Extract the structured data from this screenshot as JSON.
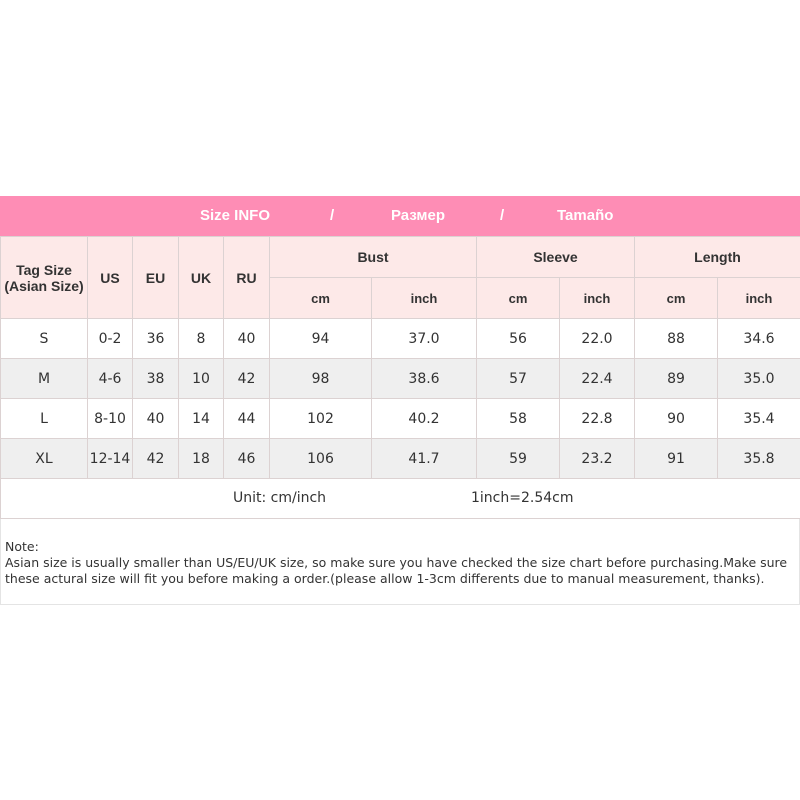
{
  "banner": {
    "title": "Size INFO",
    "sep1": "/",
    "ru": "Размер",
    "sep2": "/",
    "es": "Tamaño"
  },
  "headers": {
    "tag": "Tag Size",
    "tag2": "(Asian Size)",
    "us": "US",
    "eu": "EU",
    "uk": "UK",
    "ru": "RU",
    "bust": "Bust",
    "sleeve": "Sleeve",
    "length": "Length",
    "cm": "cm",
    "inch": "inch"
  },
  "rows": [
    [
      "S",
      "0-2",
      "36",
      "8",
      "40",
      "94",
      "37.0",
      "56",
      "22.0",
      "88",
      "34.6"
    ],
    [
      "M",
      "4-6",
      "38",
      "10",
      "42",
      "98",
      "38.6",
      "57",
      "22.4",
      "89",
      "35.0"
    ],
    [
      "L",
      "8-10",
      "40",
      "14",
      "44",
      "102",
      "40.2",
      "58",
      "22.8",
      "90",
      "35.4"
    ],
    [
      "XL",
      "12-14",
      "42",
      "18",
      "46",
      "106",
      "41.7",
      "59",
      "23.2",
      "91",
      "35.8"
    ]
  ],
  "unit": "Unit: cm/inch",
  "conversion": "1inch=2.54cm",
  "note": {
    "label": "Note:",
    "line1": "Asian size is usually smaller than US/EU/UK size, so make sure you have checked the size chart before purchasing.Make sure",
    "line2": "these actural size will fit you before making a order.(please allow 1-3cm differents due to manual measurement, thanks)."
  }
}
